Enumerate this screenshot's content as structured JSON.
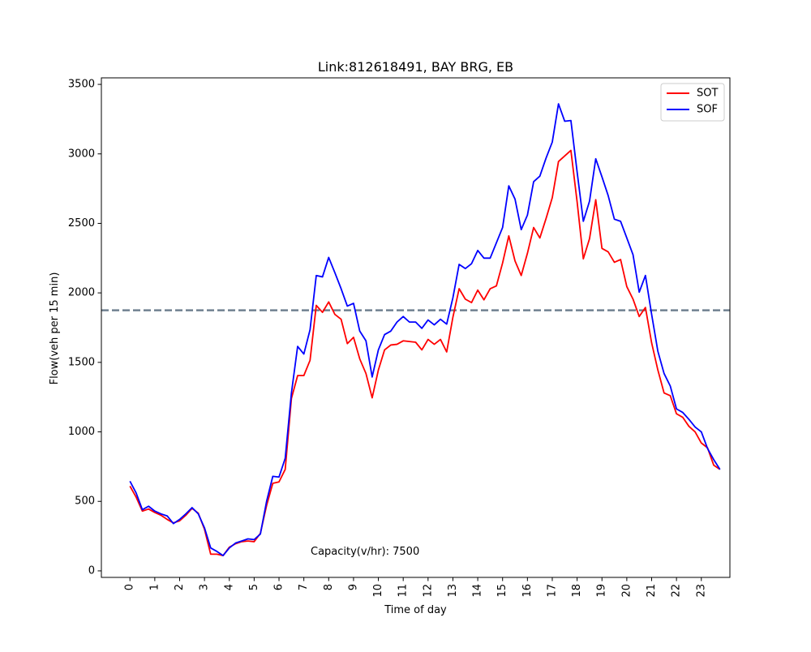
{
  "chart_data": {
    "type": "line",
    "title": "Link:812618491, BAY BRG, EB",
    "xlabel": "Time of day",
    "ylabel": "Flow(veh per 15 min)",
    "xlim": [
      -1.15,
      24.15
    ],
    "ylim": [
      -47,
      3547
    ],
    "xticks": [
      0,
      1,
      2,
      3,
      4,
      5,
      6,
      7,
      8,
      9,
      10,
      11,
      12,
      13,
      14,
      15,
      16,
      17,
      18,
      19,
      20,
      21,
      22,
      23
    ],
    "yticks": [
      0,
      500,
      1000,
      1500,
      2000,
      2500,
      3000,
      3500
    ],
    "grid": false,
    "legend_position": "upper right",
    "reference_line": {
      "y": 1875,
      "color": "#708090",
      "style": "dashed"
    },
    "annotation": "Capacity(v/hr): 7500",
    "x": [
      0,
      0.25,
      0.5,
      0.75,
      1,
      1.25,
      1.5,
      1.75,
      2,
      2.25,
      2.5,
      2.75,
      3,
      3.25,
      3.5,
      3.75,
      4,
      4.25,
      4.5,
      4.75,
      5,
      5.25,
      5.5,
      5.75,
      6,
      6.25,
      6.5,
      6.75,
      7,
      7.25,
      7.5,
      7.75,
      8,
      8.25,
      8.5,
      8.75,
      9,
      9.25,
      9.5,
      9.75,
      10,
      10.25,
      10.5,
      10.75,
      11,
      11.25,
      11.5,
      11.75,
      12,
      12.25,
      12.5,
      12.75,
      13,
      13.25,
      13.5,
      13.75,
      14,
      14.25,
      14.5,
      14.75,
      15,
      15.25,
      15.5,
      15.75,
      16,
      16.25,
      16.5,
      16.75,
      17,
      17.25,
      17.5,
      17.75,
      18,
      18.25,
      18.5,
      18.75,
      19,
      19.25,
      19.5,
      19.75,
      20,
      20.25,
      20.5,
      20.75,
      21,
      21.25,
      21.5,
      21.75,
      22,
      22.25,
      22.5,
      22.75,
      23,
      23.25,
      23.5,
      23.75
    ],
    "series": [
      {
        "name": "SOT",
        "color": "#ff0000",
        "values": [
          610,
          530,
          430,
          445,
          420,
          400,
          370,
          345,
          360,
          400,
          450,
          415,
          300,
          120,
          120,
          110,
          170,
          195,
          210,
          215,
          210,
          270,
          470,
          630,
          640,
          730,
          1240,
          1405,
          1405,
          1515,
          1910,
          1860,
          1935,
          1845,
          1810,
          1635,
          1680,
          1525,
          1420,
          1245,
          1445,
          1590,
          1625,
          1630,
          1655,
          1650,
          1645,
          1590,
          1665,
          1630,
          1665,
          1575,
          1825,
          2030,
          1955,
          1930,
          2020,
          1950,
          2030,
          2050,
          2215,
          2410,
          2230,
          2125,
          2285,
          2470,
          2395,
          2535,
          2685,
          2945,
          2985,
          3025,
          2655,
          2245,
          2390,
          2670,
          2320,
          2295,
          2220,
          2240,
          2045,
          1955,
          1830,
          1895,
          1640,
          1445,
          1280,
          1260,
          1130,
          1105,
          1040,
          1000,
          920,
          885,
          760,
          730
        ]
      },
      {
        "name": "SOF",
        "color": "#0000ff",
        "values": [
          645,
          560,
          440,
          465,
          430,
          410,
          395,
          340,
          370,
          410,
          455,
          410,
          310,
          165,
          140,
          110,
          165,
          200,
          215,
          230,
          225,
          265,
          500,
          680,
          675,
          810,
          1280,
          1615,
          1560,
          1735,
          2125,
          2115,
          2255,
          2145,
          2030,
          1905,
          1925,
          1725,
          1655,
          1395,
          1590,
          1700,
          1725,
          1790,
          1830,
          1790,
          1790,
          1745,
          1805,
          1770,
          1810,
          1775,
          1965,
          2205,
          2175,
          2210,
          2305,
          2250,
          2250,
          2360,
          2470,
          2770,
          2675,
          2455,
          2560,
          2800,
          2840,
          2970,
          3085,
          3360,
          3235,
          3240,
          2870,
          2515,
          2660,
          2965,
          2835,
          2700,
          2530,
          2515,
          2395,
          2275,
          2005,
          2125,
          1845,
          1580,
          1420,
          1330,
          1165,
          1140,
          1090,
          1035,
          1000,
          880,
          800,
          730
        ]
      }
    ]
  }
}
